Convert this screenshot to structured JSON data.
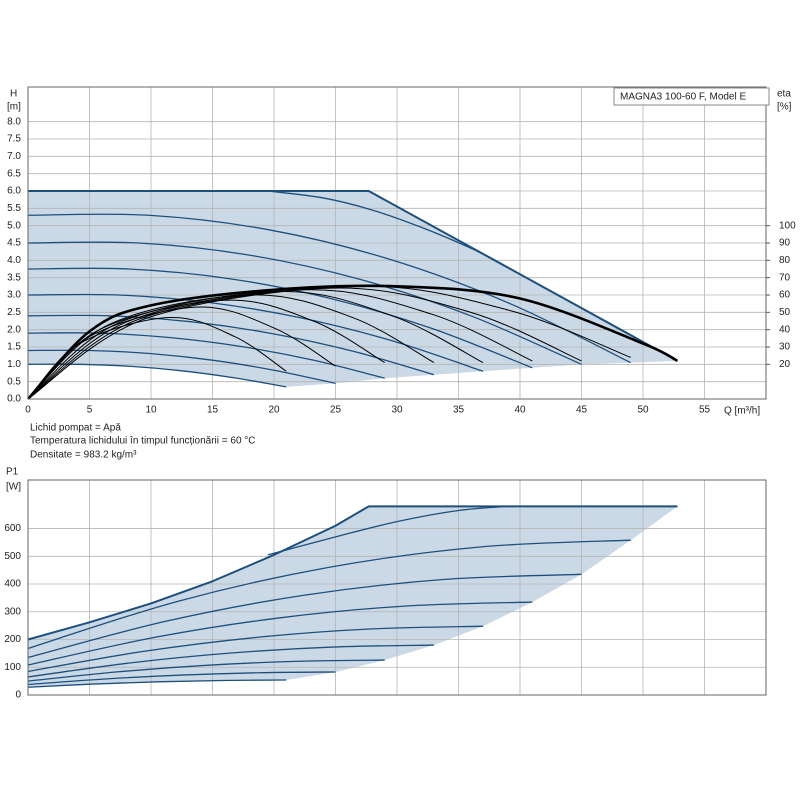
{
  "chart_data": [
    {
      "type": "line",
      "title": "MAGNA3 100-60 F, Model E",
      "ylabel": "H",
      "yunit": "[m]",
      "y2label": "eta",
      "y2unit": "[%]",
      "xlabel": "Q [m³/h]",
      "notes": [
        "Lichid pompat = Apă",
        "Temperatura lichidului în timpul funcționării = 60 °C",
        "Densitate = 983.2 kg/m³"
      ],
      "xlim": [
        0,
        60
      ],
      "xticks": [
        0,
        5,
        10,
        15,
        20,
        25,
        30,
        35,
        40,
        45,
        50,
        55
      ],
      "ylim": [
        0,
        9
      ],
      "yticks": [
        {
          "value": 0,
          "label": "0.0"
        },
        0.5,
        {
          "value": 1,
          "label": "1.0"
        },
        1.5,
        {
          "value": 2,
          "label": "2.0"
        },
        2.5,
        {
          "value": 3,
          "label": "3.0"
        },
        3.5,
        {
          "value": 4,
          "label": "4.0"
        },
        4.5,
        {
          "value": 5,
          "label": "5.0"
        },
        5.5,
        {
          "value": 6,
          "label": "6.0"
        },
        6.5,
        {
          "value": 7,
          "label": "7.0"
        },
        7.5,
        {
          "value": 8,
          "label": "8.0"
        }
      ],
      "y2lim": [
        0,
        180
      ],
      "y2ticks": [
        20,
        30,
        40,
        50,
        60,
        70,
        80,
        90,
        100
      ],
      "grid": true,
      "grid_color": "#b4b4b4",
      "fill_color": "#cbd9e6",
      "xtick_labels": true,
      "series": [
        {
          "kind": "speed",
          "color": "#1d4f7d",
          "x": [
            0,
            4.2,
            8.4,
            12.6,
            16.8,
            21
          ],
          "values": [
            1.0,
            1.0,
            0.94,
            0.81,
            0.61,
            0.35
          ]
        },
        {
          "kind": "speed",
          "color": "#1d4f7d",
          "x": [
            0,
            5,
            10,
            15,
            20,
            25
          ],
          "values": [
            1.4,
            1.4,
            1.31,
            1.12,
            0.83,
            0.45
          ]
        },
        {
          "kind": "speed",
          "color": "#1d4f7d",
          "x": [
            0,
            5.8,
            11.6,
            17.4,
            23.2,
            29
          ],
          "values": [
            1.9,
            1.9,
            1.77,
            1.51,
            1.12,
            0.6
          ]
        },
        {
          "kind": "speed",
          "color": "#1d4f7d",
          "x": [
            0,
            6.6,
            13.2,
            19.8,
            26.4,
            33
          ],
          "values": [
            2.4,
            2.4,
            2.23,
            1.89,
            1.38,
            0.7
          ]
        },
        {
          "kind": "speed",
          "color": "#1d4f7d",
          "x": [
            0,
            7.4,
            14.8,
            22.2,
            29.6,
            37
          ],
          "values": [
            3.0,
            3.0,
            2.78,
            2.34,
            1.68,
            0.8
          ]
        },
        {
          "kind": "speed",
          "color": "#1d4f7d",
          "x": [
            0,
            8.2,
            16.4,
            24.6,
            32.8,
            41
          ],
          "values": [
            3.75,
            3.75,
            3.47,
            2.9,
            2.04,
            0.9
          ]
        },
        {
          "kind": "speed",
          "color": "#1d4f7d",
          "x": [
            0,
            9,
            18,
            27,
            36,
            45
          ],
          "values": [
            4.5,
            4.5,
            4.15,
            3.45,
            2.4,
            1.0
          ]
        },
        {
          "kind": "speed",
          "color": "#1d4f7d",
          "x": [
            0,
            9.8,
            19.6,
            29.4,
            39.2,
            49
          ],
          "values": [
            5.3,
            5.3,
            4.88,
            4.03,
            2.75,
            1.05
          ]
        },
        {
          "kind": "speed-top",
          "color": "#1d4f7d",
          "x": [
            19.5,
            24,
            28,
            32,
            36,
            38.5
          ],
          "values": [
            6.0,
            5.8,
            5.45,
            4.95,
            4.35,
            3.9
          ]
        },
        {
          "kind": "max",
          "color": "#1d4f7d",
          "x": [
            0,
            27.7,
            52.8
          ],
          "values": [
            6.0,
            6.0,
            1.1
          ]
        },
        {
          "kind": "eta",
          "axis": "y2",
          "color": "#000000",
          "x": [
            0,
            4.2,
            11.5,
            16.8,
            21
          ],
          "values": [
            0,
            32,
            47,
            36,
            16
          ]
        },
        {
          "kind": "eta",
          "axis": "y2",
          "color": "#000000",
          "x": [
            0,
            5,
            13.7,
            20,
            25
          ],
          "values": [
            0,
            36,
            53,
            41,
            19
          ]
        },
        {
          "kind": "eta",
          "axis": "y2",
          "color": "#000000",
          "x": [
            0,
            5.8,
            16,
            23.2,
            29
          ],
          "values": [
            0,
            40,
            57,
            45,
            21
          ]
        },
        {
          "kind": "eta",
          "axis": "y2",
          "color": "#000000",
          "x": [
            0,
            6.6,
            18.1,
            26.4,
            33
          ],
          "values": [
            0,
            43,
            60,
            47,
            21
          ]
        },
        {
          "kind": "eta",
          "axis": "y2",
          "color": "#000000",
          "x": [
            0,
            7.4,
            20.4,
            29.6,
            37
          ],
          "values": [
            0,
            44,
            62,
            48,
            21
          ]
        },
        {
          "kind": "eta",
          "axis": "y2",
          "color": "#000000",
          "x": [
            0,
            8.2,
            22.6,
            32.8,
            41
          ],
          "values": [
            0,
            45,
            63,
            49,
            22
          ]
        },
        {
          "kind": "eta",
          "axis": "y2",
          "color": "#000000",
          "x": [
            0,
            9,
            24.8,
            36,
            45
          ],
          "values": [
            0,
            46,
            64,
            50,
            22
          ]
        },
        {
          "kind": "eta",
          "axis": "y2",
          "color": "#000000",
          "x": [
            0,
            9.8,
            27,
            39.2,
            49
          ],
          "values": [
            0,
            47,
            65,
            51,
            24
          ]
        },
        {
          "kind": "eta-max",
          "axis": "y2",
          "color": "#000000",
          "x": [
            0,
            5,
            10,
            20,
            30,
            40,
            50,
            52.8
          ],
          "values": [
            0,
            39,
            54,
            63,
            65,
            58,
            32,
            22
          ]
        }
      ]
    },
    {
      "type": "line",
      "ylabel": "P1",
      "yunit": "[W]",
      "xlim": [
        0,
        60
      ],
      "xticks": [
        0,
        5,
        10,
        15,
        20,
        25,
        30,
        35,
        40,
        45,
        50,
        55
      ],
      "ylim": [
        0,
        775
      ],
      "yticks": [
        0,
        100,
        200,
        300,
        400,
        500,
        600
      ],
      "grid": true,
      "grid_color": "#b4b4b4",
      "fill_color": "#cbd9e6",
      "xtick_labels": false,
      "series": [
        {
          "kind": "speed",
          "color": "#1d4f7d",
          "x": [
            0,
            5.25,
            10.5,
            15.75,
            21
          ],
          "values": [
            28,
            39.4,
            47.5,
            52.4,
            54
          ]
        },
        {
          "kind": "speed",
          "color": "#1d4f7d",
          "x": [
            0,
            6.25,
            12.5,
            18.75,
            25
          ],
          "values": [
            38,
            57.7,
            71.8,
            80.2,
            83
          ]
        },
        {
          "kind": "speed",
          "color": "#1d4f7d",
          "x": [
            0,
            7.25,
            14.5,
            21.75,
            29
          ],
          "values": [
            50,
            83.3,
            107,
            121.3,
            126
          ]
        },
        {
          "kind": "speed",
          "color": "#1d4f7d",
          "x": [
            0,
            8.25,
            16.5,
            24.75,
            33
          ],
          "values": [
            65,
            115.3,
            151.3,
            172.8,
            180
          ]
        },
        {
          "kind": "speed",
          "color": "#1d4f7d",
          "x": [
            0,
            9.25,
            18.5,
            27.75,
            37
          ],
          "values": [
            85,
            156.3,
            207.3,
            237.8,
            248
          ]
        },
        {
          "kind": "speed",
          "color": "#1d4f7d",
          "x": [
            0,
            10.25,
            20.5,
            30.75,
            41
          ],
          "values": [
            108,
            207.3,
            278.3,
            320.8,
            335
          ]
        },
        {
          "kind": "speed",
          "color": "#1d4f7d",
          "x": [
            0,
            11.25,
            22.5,
            33.75,
            45
          ],
          "values": [
            135,
            266.3,
            360,
            416.3,
            435
          ]
        },
        {
          "kind": "speed",
          "color": "#1d4f7d",
          "x": [
            0,
            12.25,
            24.5,
            36.75,
            49
          ],
          "values": [
            168,
            338.6,
            460.5,
            533.6,
            558
          ]
        },
        {
          "kind": "speed-top",
          "color": "#1d4f7d",
          "x": [
            19.5,
            25,
            30,
            35,
            39
          ],
          "values": [
            505,
            570,
            625,
            665,
            680
          ]
        },
        {
          "kind": "max",
          "color": "#1d4f7d",
          "x": [
            0,
            5,
            10,
            15,
            20,
            25,
            27.7,
            52.8
          ],
          "values": [
            200,
            262,
            330,
            410,
            505,
            610,
            680,
            680
          ]
        }
      ]
    }
  ]
}
